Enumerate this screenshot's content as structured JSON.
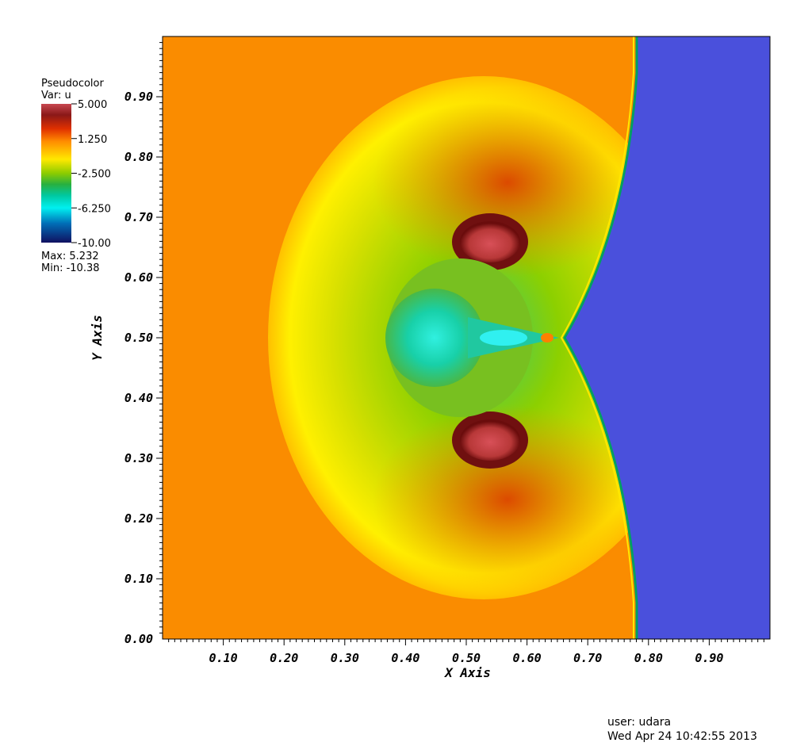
{
  "chart_data": {
    "type": "heatmap",
    "plot_kind": "Pseudocolor",
    "variable": "Var: u",
    "xlabel": "X Axis",
    "ylabel": "Y Axis",
    "xlim": [
      0.0,
      1.0
    ],
    "ylim": [
      0.0,
      1.0
    ],
    "x_ticks": [
      "0.10",
      "0.20",
      "0.30",
      "0.40",
      "0.50",
      "0.60",
      "0.70",
      "0.80",
      "0.90"
    ],
    "y_ticks": [
      "0.00",
      "0.10",
      "0.20",
      "0.30",
      "0.40",
      "0.50",
      "0.60",
      "0.70",
      "0.80",
      "0.90"
    ],
    "x_tick_values": [
      0.1,
      0.2,
      0.3,
      0.4,
      0.5,
      0.6,
      0.7,
      0.8,
      0.9
    ],
    "y_tick_values": [
      0.0,
      0.1,
      0.2,
      0.3,
      0.4,
      0.5,
      0.6,
      0.7,
      0.8,
      0.9
    ],
    "colorbar": {
      "labels": [
        "5.000",
        "1.250",
        "-2.500",
        "-6.250",
        "-10.00"
      ],
      "values": [
        5.0,
        1.25,
        -2.5,
        -6.25,
        -10.0
      ],
      "colors": [
        "#c84850",
        "#7a1010",
        "#e03000",
        "#ff8c00",
        "#ffe800",
        "#9ad000",
        "#3cb000",
        "#00c090",
        "#00f0f0",
        "#0078c0",
        "#101060"
      ]
    },
    "max_label": "Max:  5.232",
    "min_label": "Min:  -10.38",
    "max": 5.232,
    "min": -10.38,
    "regions": {
      "ambient_color": "#fa8c00",
      "post_shock_color": "#4a50dc",
      "shock_front_x": 0.78
    }
  },
  "footer": {
    "user": "user: udara",
    "timestamp": "Wed Apr 24 10:42:55 2013"
  }
}
